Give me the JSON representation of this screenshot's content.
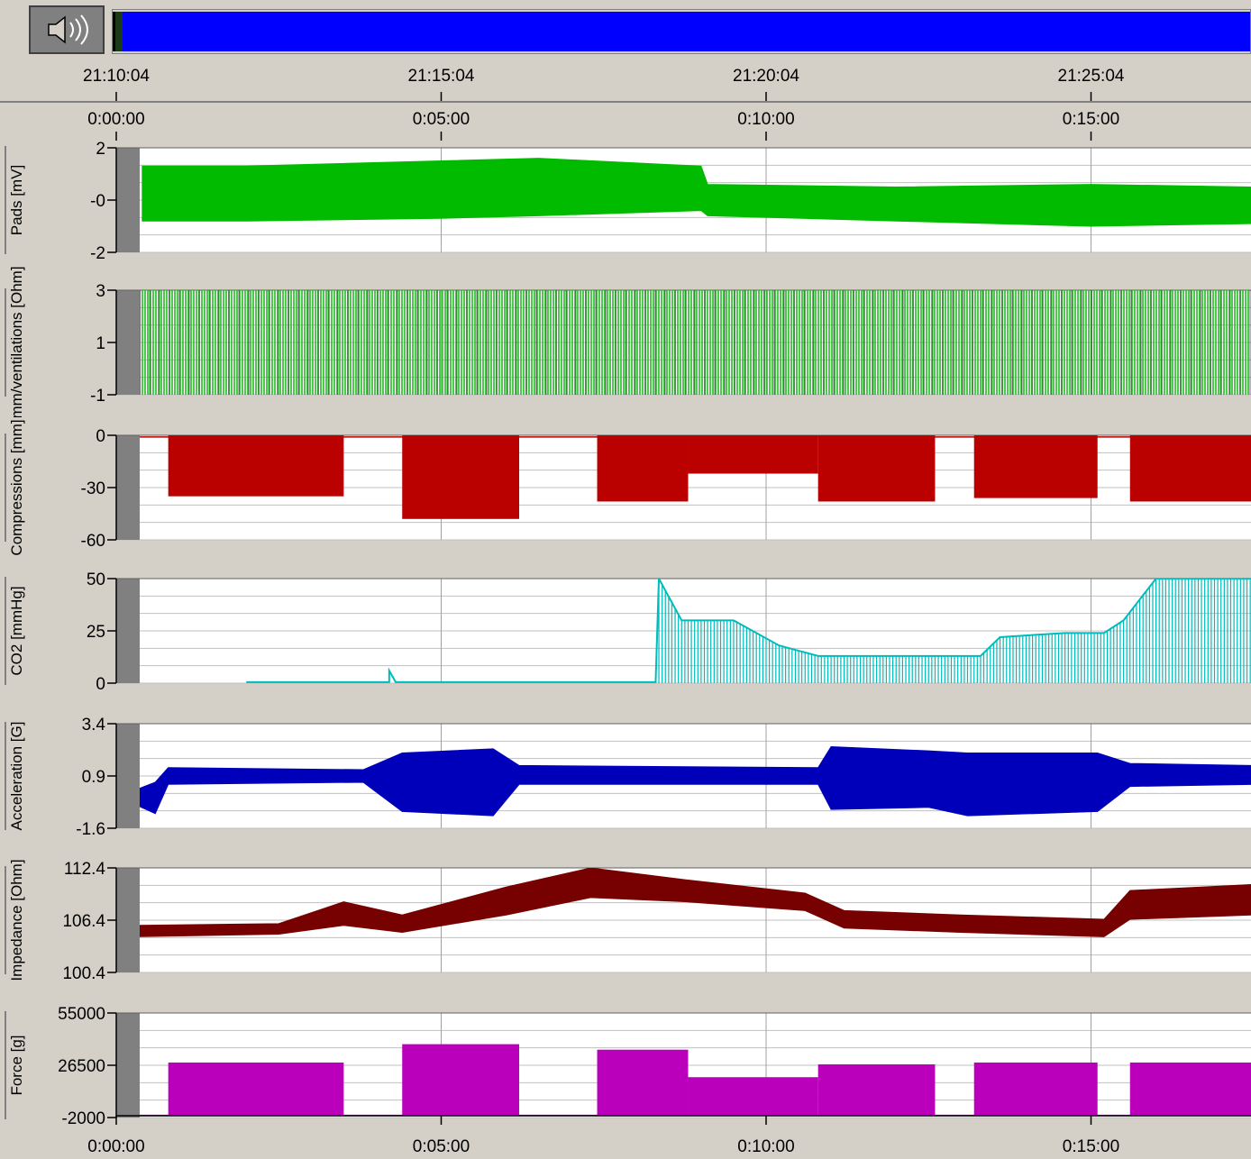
{
  "toolbar": {
    "speaker_icon": "speaker-icon",
    "progress_fraction": 1.0,
    "progress_color": "#0000ff"
  },
  "clock_axis": {
    "labels": [
      "21:10:04",
      "21:15:04",
      "21:20:04",
      "21:25:04"
    ]
  },
  "chart_data": {
    "type": "line",
    "x_unit": "elapsed time",
    "x_range": [
      "0:00:00",
      "0:17:30"
    ],
    "top_ticks": [
      "0:00:00",
      "0:05:00",
      "0:10:00",
      "0:15:00"
    ],
    "bottom_ticks": [
      "0:00:00",
      "0:05:00",
      "0:10:00",
      "0:15:00"
    ],
    "grid": true,
    "panels": [
      {
        "ylabel": "Pads [mV]",
        "ticks": [
          "2",
          "-0",
          "-2"
        ],
        "ylim": [
          -2,
          2
        ],
        "color": "#00bb00",
        "style": "fill",
        "envelope": [
          {
            "t": 0.4,
            "min": -0.8,
            "max": 1.3
          },
          {
            "t": 2.0,
            "min": -0.8,
            "max": 1.3
          },
          {
            "t": 5.0,
            "min": -0.7,
            "max": 1.5
          },
          {
            "t": 6.5,
            "min": -0.6,
            "max": 1.6
          },
          {
            "t": 9.0,
            "min": -0.4,
            "max": 1.3
          },
          {
            "t": 9.1,
            "min": -0.6,
            "max": 0.6
          },
          {
            "t": 12.0,
            "min": -0.8,
            "max": 0.5
          },
          {
            "t": 15.0,
            "min": -1.0,
            "max": 0.6
          },
          {
            "t": 17.5,
            "min": -0.9,
            "max": 0.5
          }
        ]
      },
      {
        "ylabel": "mm/ventilations [Ohm]",
        "ticks": [
          "3",
          "1",
          "-1"
        ],
        "ylim": [
          -1,
          3
        ],
        "color": "#22bb22",
        "style": "bars",
        "envelope": [
          {
            "t": 0.0,
            "min": -1,
            "max": 3
          },
          {
            "t": 17.5,
            "min": -1,
            "max": 3
          }
        ]
      },
      {
        "ylabel": "Compressions [mm]",
        "ticks": [
          "0",
          "-30",
          "-60"
        ],
        "ylim": [
          -60,
          0
        ],
        "color": "#bb0000",
        "style": "fill",
        "segments": [
          {
            "from": 0.8,
            "to": 3.5,
            "depth": -35
          },
          {
            "from": 4.4,
            "to": 6.2,
            "depth": -48
          },
          {
            "from": 7.4,
            "to": 8.8,
            "depth": -38
          },
          {
            "from": 8.8,
            "to": 10.8,
            "depth": -22
          },
          {
            "from": 10.8,
            "to": 12.6,
            "depth": -38
          },
          {
            "from": 13.2,
            "to": 15.1,
            "depth": -36
          },
          {
            "from": 15.6,
            "to": 17.5,
            "depth": -38
          }
        ]
      },
      {
        "ylabel": "CO2 [mmHg]",
        "ticks": [
          "50",
          "25",
          "0"
        ],
        "ylim": [
          0,
          50
        ],
        "color": "#00bbbb",
        "style": "line",
        "points": [
          [
            2.0,
            0.5
          ],
          [
            4.2,
            0.5
          ],
          [
            4.2,
            6
          ],
          [
            4.3,
            0.5
          ],
          [
            8.3,
            0.5
          ],
          [
            8.35,
            50
          ],
          [
            8.7,
            30
          ],
          [
            9.5,
            30
          ],
          [
            10.2,
            18
          ],
          [
            10.8,
            13
          ],
          [
            12.0,
            13
          ],
          [
            13.3,
            13
          ],
          [
            13.6,
            22
          ],
          [
            14.6,
            24
          ],
          [
            15.2,
            24
          ],
          [
            15.5,
            30
          ],
          [
            16.0,
            50
          ],
          [
            17.5,
            50
          ]
        ]
      },
      {
        "ylabel": "Acceleration [G]",
        "ticks": [
          "3.4",
          "0.9",
          "-1.6"
        ],
        "ylim": [
          -1.6,
          3.4
        ],
        "color": "#0000bb",
        "style": "fill",
        "envelope": [
          {
            "t": 0.1,
            "min": -0.2,
            "max": 0.0
          },
          {
            "t": 0.6,
            "min": -0.9,
            "max": 0.6
          },
          {
            "t": 0.8,
            "min": 0.5,
            "max": 1.3
          },
          {
            "t": 3.8,
            "min": 0.6,
            "max": 1.2
          },
          {
            "t": 4.4,
            "min": -0.8,
            "max": 2.0
          },
          {
            "t": 5.8,
            "min": -1.0,
            "max": 2.2
          },
          {
            "t": 6.2,
            "min": 0.5,
            "max": 1.4
          },
          {
            "t": 10.8,
            "min": 0.5,
            "max": 1.3
          },
          {
            "t": 11.0,
            "min": -0.7,
            "max": 2.3
          },
          {
            "t": 12.5,
            "min": -0.6,
            "max": 2.1
          },
          {
            "t": 13.1,
            "min": -1.0,
            "max": 2.0
          },
          {
            "t": 15.1,
            "min": -0.8,
            "max": 2.0
          },
          {
            "t": 15.6,
            "min": 0.4,
            "max": 1.5
          },
          {
            "t": 17.5,
            "min": 0.5,
            "max": 1.4
          }
        ]
      },
      {
        "ylabel": "Impedance [Ohm]",
        "ticks": [
          "112.4",
          "106.4",
          "100.4"
        ],
        "ylim": [
          100.4,
          112.4
        ],
        "color": "#770000",
        "style": "fill",
        "envelope": [
          {
            "t": 0.3,
            "min": 104.5,
            "max": 105.8
          },
          {
            "t": 2.5,
            "min": 104.8,
            "max": 106.0
          },
          {
            "t": 3.5,
            "min": 105.8,
            "max": 108.5
          },
          {
            "t": 4.4,
            "min": 105.0,
            "max": 107.0
          },
          {
            "t": 6.0,
            "min": 107.0,
            "max": 110.2
          },
          {
            "t": 7.3,
            "min": 109.0,
            "max": 112.4
          },
          {
            "t": 8.8,
            "min": 108.5,
            "max": 111.0
          },
          {
            "t": 10.6,
            "min": 107.5,
            "max": 109.5
          },
          {
            "t": 11.2,
            "min": 105.5,
            "max": 107.5
          },
          {
            "t": 13.0,
            "min": 105.0,
            "max": 107.0
          },
          {
            "t": 15.2,
            "min": 104.5,
            "max": 106.5
          },
          {
            "t": 15.6,
            "min": 106.5,
            "max": 109.8
          },
          {
            "t": 17.5,
            "min": 107.0,
            "max": 110.5
          }
        ]
      },
      {
        "ylabel": "Force [g]",
        "ticks": [
          "55000",
          "26500",
          "-2000"
        ],
        "ylim": [
          -2000,
          55000
        ],
        "color": "#bb00bb",
        "style": "fill",
        "segments": [
          {
            "from": 0.8,
            "to": 3.5,
            "depth": 28000
          },
          {
            "from": 4.4,
            "to": 6.2,
            "depth": 38000
          },
          {
            "from": 7.4,
            "to": 8.8,
            "depth": 35000
          },
          {
            "from": 8.8,
            "to": 10.8,
            "depth": 20000
          },
          {
            "from": 10.8,
            "to": 12.6,
            "depth": 27000
          },
          {
            "from": 13.2,
            "to": 15.1,
            "depth": 28000
          },
          {
            "from": 15.6,
            "to": 17.5,
            "depth": 28000
          }
        ]
      }
    ]
  }
}
